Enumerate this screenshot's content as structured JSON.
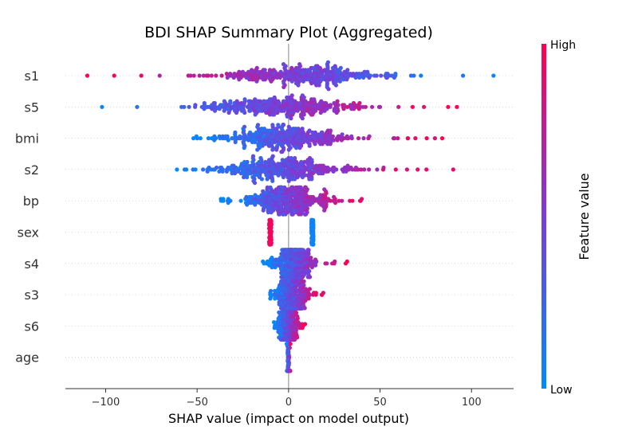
{
  "chart_data": {
    "type": "scatter",
    "title": "BDI SHAP Summary Plot (Aggregated)",
    "xlabel": "SHAP value (impact on model output)",
    "xlim": [
      -122,
      123
    ],
    "xticks": [
      -100,
      -50,
      0,
      50,
      100
    ],
    "xtick_labels": [
      "−100",
      "−50",
      "0",
      "50",
      "100"
    ],
    "features": [
      "s1",
      "s5",
      "bmi",
      "s2",
      "bp",
      "sex",
      "s4",
      "s3",
      "s6",
      "age"
    ],
    "colorbar": {
      "label": "Feature value",
      "high_label": "High",
      "low_label": "Low",
      "low_color": "#008bfb",
      "high_color": "#ff0052"
    },
    "feature_spread": [
      {
        "feature": "s1",
        "min": -110,
        "max": 112,
        "low_side": "right",
        "density_range": [
          -55,
          70
        ]
      },
      {
        "feature": "s5",
        "min": -102,
        "max": 92,
        "low_side": "left",
        "density_range": [
          -60,
          55
        ]
      },
      {
        "feature": "bmi",
        "min": -52,
        "max": 84,
        "low_side": "left",
        "density_range": [
          -48,
          45
        ]
      },
      {
        "feature": "s2",
        "min": -61,
        "max": 90,
        "low_side": "left",
        "density_range": [
          -55,
          45
        ]
      },
      {
        "feature": "bp",
        "min": -37,
        "max": 40,
        "low_side": "left",
        "density_range": [
          -30,
          30
        ]
      },
      {
        "feature": "sex",
        "min": -10,
        "max": 13,
        "low_side": "right",
        "clusters": [
          -10,
          13
        ]
      },
      {
        "feature": "s4",
        "min": -14,
        "max": 32,
        "low_side": "left",
        "density_range": [
          -12,
          18
        ]
      },
      {
        "feature": "s3",
        "min": -10,
        "max": 19,
        "low_side": "left",
        "density_range": [
          -10,
          14
        ]
      },
      {
        "feature": "s6",
        "min": -8,
        "max": 9,
        "low_side": "left",
        "density_range": [
          -7,
          7
        ]
      },
      {
        "feature": "age",
        "min": -1,
        "max": 1,
        "low_side": "left",
        "density_range": [
          -1,
          1
        ]
      }
    ]
  }
}
